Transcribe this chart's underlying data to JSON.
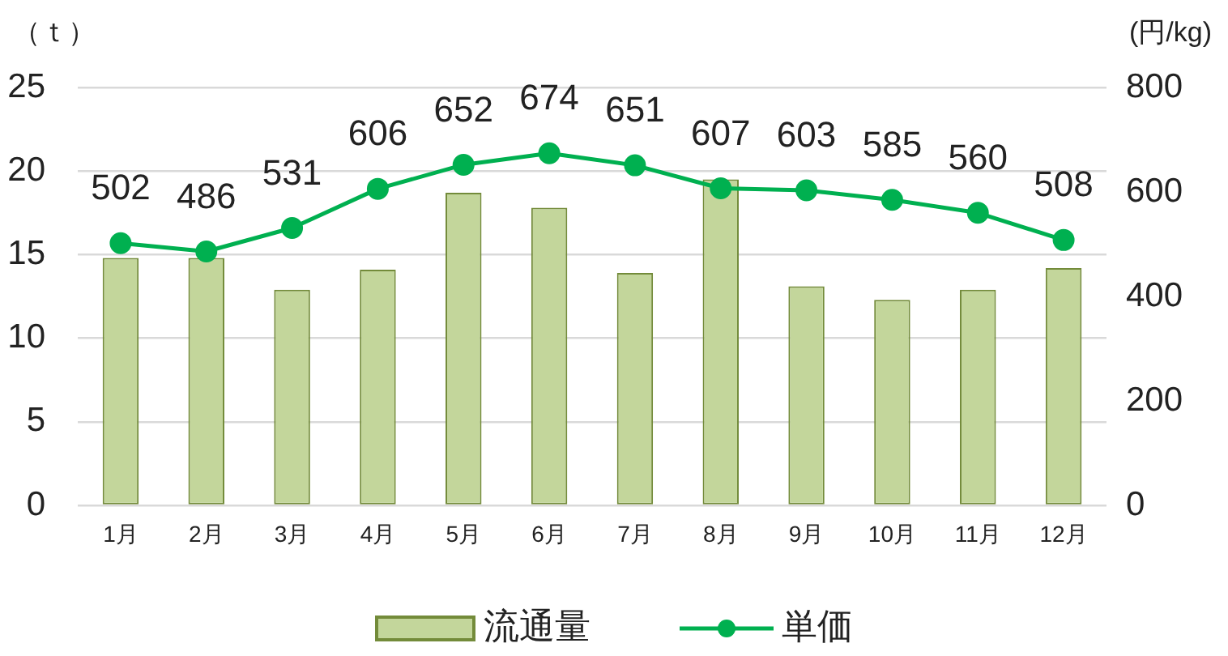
{
  "chart_data": {
    "type": "bar",
    "categories": [
      "1月",
      "2月",
      "3月",
      "4月",
      "5月",
      "6月",
      "7月",
      "8月",
      "9月",
      "10月",
      "11月",
      "12月"
    ],
    "series": [
      {
        "name": "流通量",
        "color": "#c3d69b",
        "values": [
          14.8,
          14.8,
          12.9,
          14.1,
          18.7,
          17.8,
          13.9,
          19.5,
          13.1,
          12.3,
          12.9,
          14.2
        ]
      },
      {
        "name": "単価",
        "type": "line",
        "color": "#00b050",
        "axis": "y2",
        "marker": "circle",
        "values": [
          502,
          486,
          531,
          606,
          652,
          674,
          651,
          607,
          603,
          585,
          560,
          508
        ],
        "value_labels": [
          "502",
          "486",
          "531",
          "606",
          "652",
          "674",
          "651",
          "607",
          "603",
          "585",
          "560",
          "508"
        ]
      }
    ],
    "ylabel": "（ｔ）",
    "y2label": "(円/kg)",
    "ylim": [
      0,
      25
    ],
    "yticks": [
      0,
      5,
      10,
      15,
      20,
      25
    ],
    "y2lim": [
      0,
      800
    ],
    "y2ticks": [
      0,
      200,
      400,
      600,
      800
    ],
    "grid": "y",
    "legend": "bottom"
  }
}
